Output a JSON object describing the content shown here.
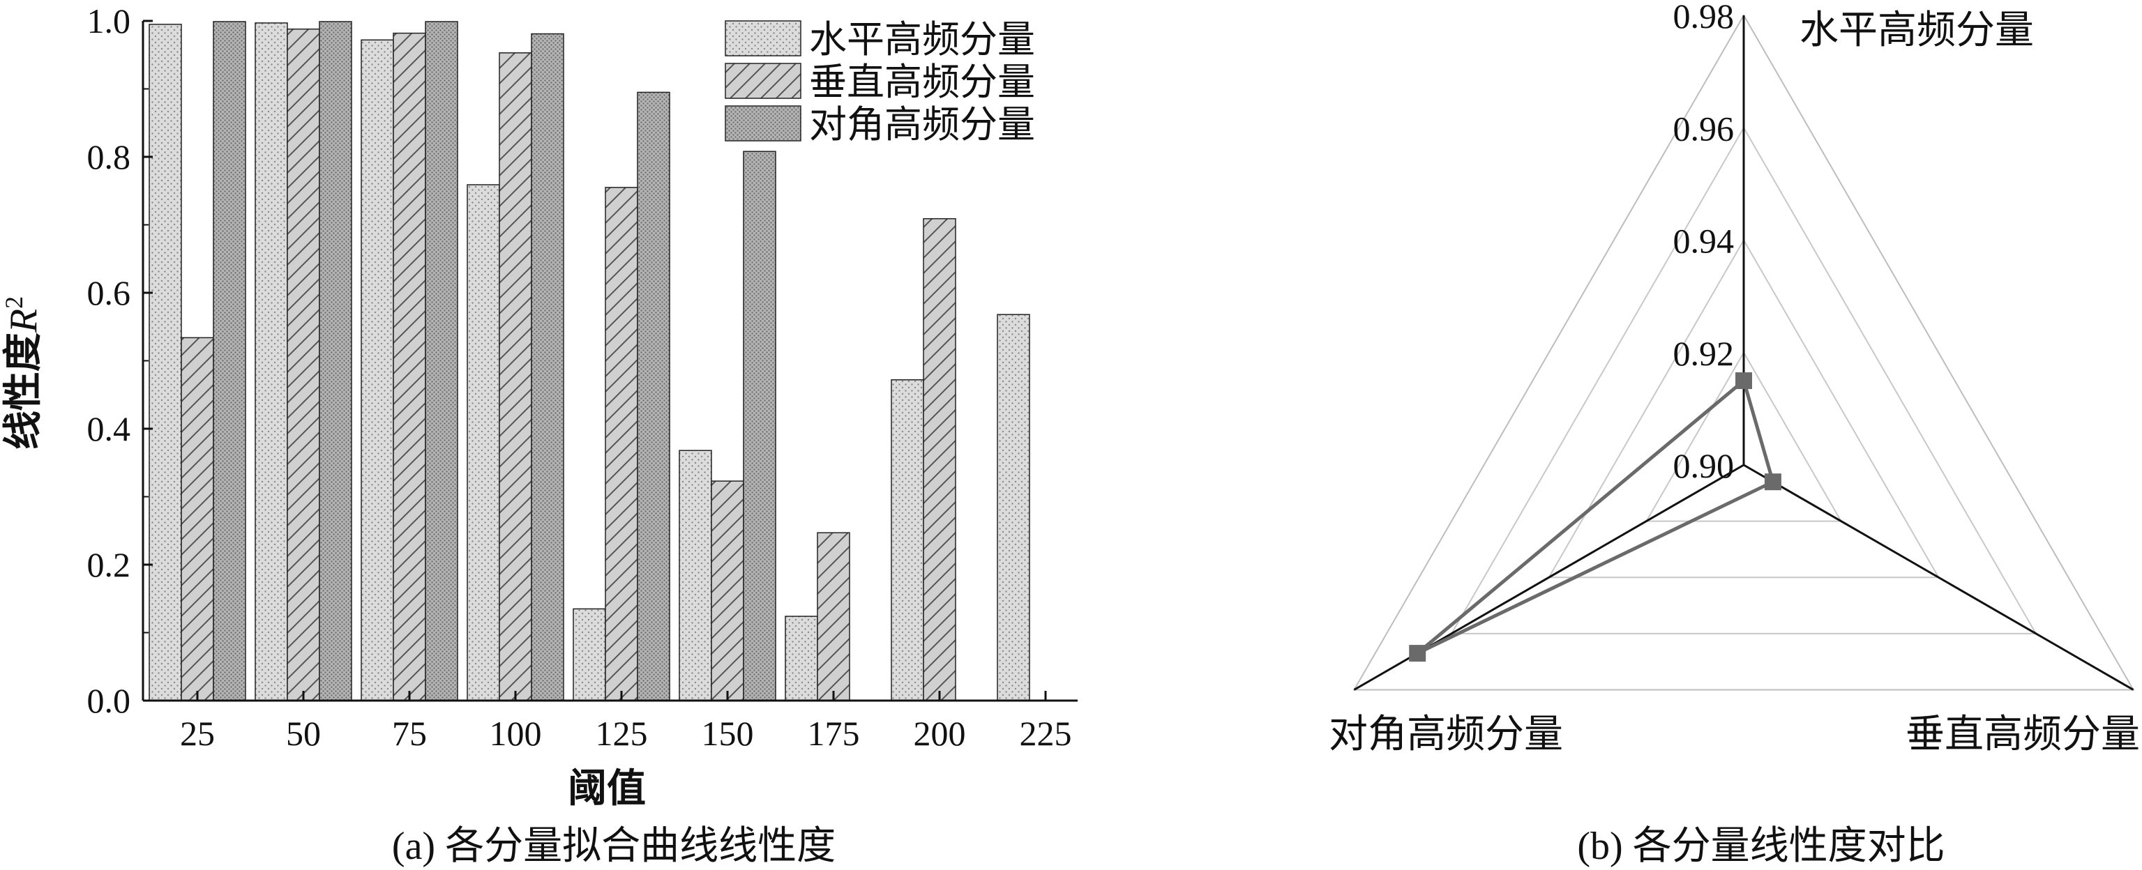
{
  "chart_data": [
    {
      "type": "bar",
      "xlabel": "阈值",
      "ylabel": "线性度",
      "ylabel_symbol": "R",
      "ylabel_sup": "2",
      "caption": "(a) 各分量拟合曲线线性度",
      "ylim": [
        0,
        1.0
      ],
      "yticks": [
        "0.0",
        "0.2",
        "0.4",
        "0.6",
        "0.8",
        "1.0"
      ],
      "categories": [
        "25",
        "50",
        "75",
        "100",
        "125",
        "150",
        "175",
        "200",
        "225"
      ],
      "legend_position": "top-right",
      "series": [
        {
          "name": "水平高频分量",
          "pattern": "dots",
          "values": [
            0.995,
            0.997,
            0.972,
            0.759,
            0.135,
            0.368,
            0.124,
            0.472,
            0.568
          ]
        },
        {
          "name": "垂直高频分量",
          "pattern": "hatch",
          "values": [
            0.534,
            0.988,
            0.982,
            0.953,
            0.755,
            0.323,
            0.247,
            0.709,
            null
          ]
        },
        {
          "name": "对角高频分量",
          "pattern": "dense",
          "values": [
            0.999,
            0.999,
            0.999,
            0.981,
            0.895,
            0.808,
            null,
            null,
            null
          ]
        }
      ]
    },
    {
      "type": "radar",
      "caption": "(b) 各分量线性度对比",
      "axes": [
        "水平高频分量",
        "垂直高频分量",
        "对角高频分量"
      ],
      "rlim": [
        0.9,
        0.98
      ],
      "rticks": [
        "0.90",
        "0.92",
        "0.94",
        "0.96",
        "0.98"
      ],
      "values": [
        0.915,
        0.906,
        0.967
      ]
    }
  ],
  "colors": {
    "bar_fill": "#d6d6d6",
    "bar_dense_fill": "#a9a9a9",
    "radar_line": "#6a6a6a",
    "grid": "#c8c8c8"
  }
}
